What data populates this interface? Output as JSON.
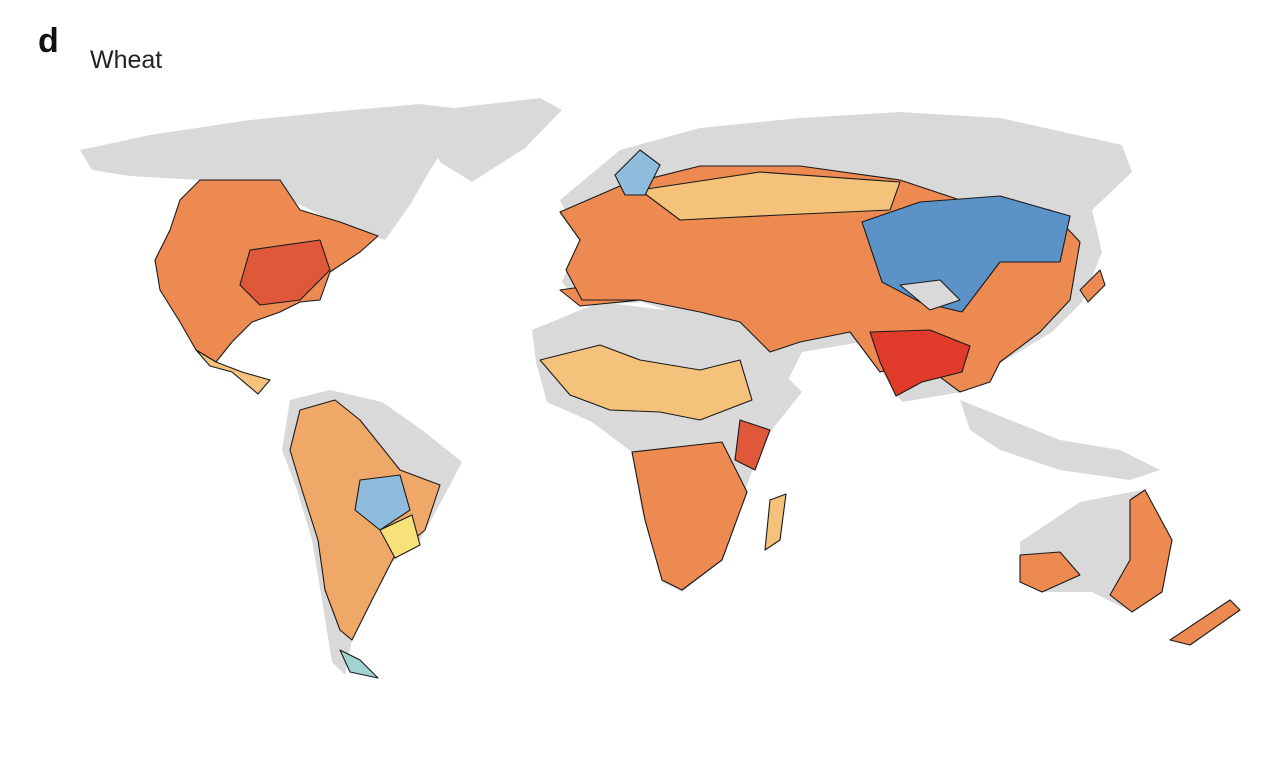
{
  "panel_label": "d",
  "title": "Wheat"
}
